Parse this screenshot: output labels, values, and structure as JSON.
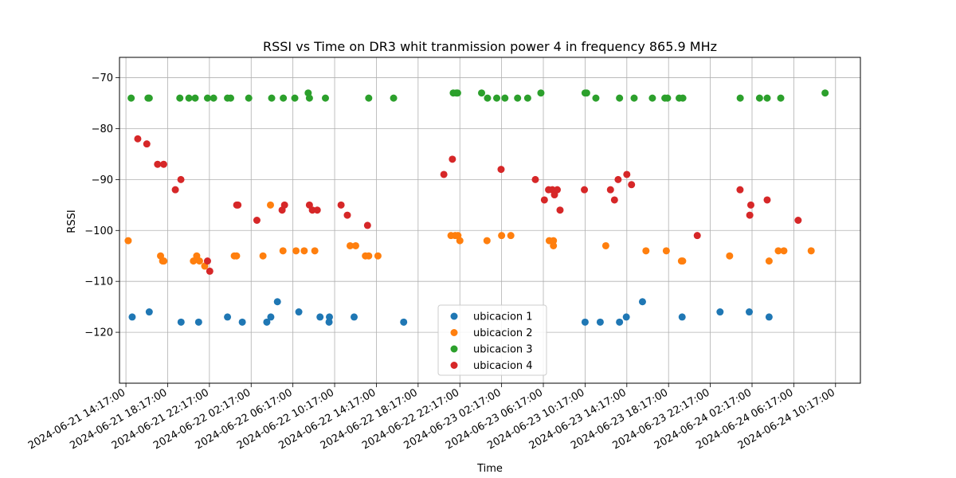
{
  "chart_data": {
    "type": "scatter",
    "title": "RSSI vs Time on DR3  whit tranmission power 4 in frequency 865.9 MHz",
    "xlabel": "Time",
    "ylabel": "RSSI",
    "x_unit": "datetime",
    "xlim": [
      "2024-06-21 13:40",
      "2024-06-24 12:40"
    ],
    "ylim": [
      -130,
      -66
    ],
    "x_ticks": [
      "2024-06-21 14:17:00",
      "2024-06-21 18:17:00",
      "2024-06-21 22:17:00",
      "2024-06-22 02:17:00",
      "2024-06-22 06:17:00",
      "2024-06-22 10:17:00",
      "2024-06-22 14:17:00",
      "2024-06-22 18:17:00",
      "2024-06-22 22:17:00",
      "2024-06-23 02:17:00",
      "2024-06-23 06:17:00",
      "2024-06-23 10:17:00",
      "2024-06-23 14:17:00",
      "2024-06-23 18:17:00",
      "2024-06-23 22:17:00",
      "2024-06-24 02:17:00",
      "2024-06-24 06:17:00",
      "2024-06-24 10:17:00"
    ],
    "y_ticks": [
      -70,
      -80,
      -90,
      -100,
      -110,
      -120
    ],
    "grid": true,
    "legend_position": "lower-center",
    "series": [
      {
        "name": "ubicacion 1",
        "color": "#1f77b4",
        "points": [
          [
            "2024-06-21 14:53",
            -117
          ],
          [
            "2024-06-21 16:31",
            -116
          ],
          [
            "2024-06-21 19:34",
            -118
          ],
          [
            "2024-06-21 21:15",
            -118
          ],
          [
            "2024-06-22 00:01",
            -117
          ],
          [
            "2024-06-22 01:26",
            -118
          ],
          [
            "2024-06-22 03:47",
            -118
          ],
          [
            "2024-06-22 04:10",
            -117
          ],
          [
            "2024-06-22 04:48",
            -114
          ],
          [
            "2024-06-22 06:51",
            -116
          ],
          [
            "2024-06-22 08:53",
            -117
          ],
          [
            "2024-06-22 09:45",
            -118
          ],
          [
            "2024-06-22 09:47",
            -117
          ],
          [
            "2024-06-22 12:09",
            -117
          ],
          [
            "2024-06-22 16:54",
            -118
          ],
          [
            "2024-06-23 10:17",
            -118
          ],
          [
            "2024-06-23 11:44",
            -118
          ],
          [
            "2024-06-23 13:35",
            -118
          ],
          [
            "2024-06-23 14:14",
            -117
          ],
          [
            "2024-06-23 15:47",
            -114
          ],
          [
            "2024-06-23 19:35",
            -117
          ],
          [
            "2024-06-23 23:13",
            -116
          ],
          [
            "2024-06-24 02:01",
            -116
          ],
          [
            "2024-06-24 03:55",
            -117
          ]
        ]
      },
      {
        "name": "ubicacion 2",
        "color": "#ff7f0e",
        "points": [
          [
            "2024-06-21 14:30",
            -102
          ],
          [
            "2024-06-21 17:36",
            -105
          ],
          [
            "2024-06-21 17:48",
            -106
          ],
          [
            "2024-06-21 17:55",
            -106
          ],
          [
            "2024-06-21 20:45",
            -106
          ],
          [
            "2024-06-21 21:04",
            -105
          ],
          [
            "2024-06-21 21:20",
            -106
          ],
          [
            "2024-06-21 21:50",
            -107
          ],
          [
            "2024-06-22 00:40",
            -105
          ],
          [
            "2024-06-22 00:53",
            -105
          ],
          [
            "2024-06-22 03:25",
            -105
          ],
          [
            "2024-06-22 04:08",
            -95
          ],
          [
            "2024-06-22 05:20",
            -104
          ],
          [
            "2024-06-22 06:35",
            -104
          ],
          [
            "2024-06-22 07:22",
            -104
          ],
          [
            "2024-06-22 08:23",
            -104
          ],
          [
            "2024-06-22 11:46",
            -103
          ],
          [
            "2024-06-22 12:18",
            -103
          ],
          [
            "2024-06-22 13:14",
            -105
          ],
          [
            "2024-06-22 13:33",
            -105
          ],
          [
            "2024-06-22 14:26",
            -105
          ],
          [
            "2024-06-22 21:26",
            -101
          ],
          [
            "2024-06-22 21:50",
            -101
          ],
          [
            "2024-06-22 22:06",
            -101
          ],
          [
            "2024-06-22 22:17",
            -102
          ],
          [
            "2024-06-23 00:53",
            -102
          ],
          [
            "2024-06-23 02:17",
            -101
          ],
          [
            "2024-06-23 03:10",
            -101
          ],
          [
            "2024-06-23 06:51",
            -102
          ],
          [
            "2024-06-23 07:15",
            -103
          ],
          [
            "2024-06-23 07:15",
            -102
          ],
          [
            "2024-06-23 12:16",
            -103
          ],
          [
            "2024-06-23 16:07",
            -104
          ],
          [
            "2024-06-23 18:04",
            -104
          ],
          [
            "2024-06-23 19:31",
            -106
          ],
          [
            "2024-06-23 19:38",
            -106
          ],
          [
            "2024-06-24 00:08",
            -105
          ],
          [
            "2024-06-24 03:55",
            -106
          ],
          [
            "2024-06-24 04:48",
            -104
          ],
          [
            "2024-06-24 05:20",
            -104
          ],
          [
            "2024-06-24 07:57",
            -104
          ]
        ]
      },
      {
        "name": "ubicacion 3",
        "color": "#2ca02c",
        "points": [
          [
            "2024-06-21 14:47",
            -74
          ],
          [
            "2024-06-21 16:24",
            -74
          ],
          [
            "2024-06-21 16:31",
            -74
          ],
          [
            "2024-06-21 19:27",
            -74
          ],
          [
            "2024-06-21 20:19",
            -74
          ],
          [
            "2024-06-21 20:55",
            -74
          ],
          [
            "2024-06-21 22:06",
            -74
          ],
          [
            "2024-06-21 22:41",
            -74
          ],
          [
            "2024-06-22 00:01",
            -74
          ],
          [
            "2024-06-22 00:19",
            -74
          ],
          [
            "2024-06-22 02:03",
            -74
          ],
          [
            "2024-06-22 04:15",
            -74
          ],
          [
            "2024-06-22 05:22",
            -74
          ],
          [
            "2024-06-22 06:28",
            -74
          ],
          [
            "2024-06-22 07:45",
            -73
          ],
          [
            "2024-06-22 07:52",
            -74
          ],
          [
            "2024-06-22 09:24",
            -74
          ],
          [
            "2024-06-22 13:33",
            -74
          ],
          [
            "2024-06-22 15:56",
            -74
          ],
          [
            "2024-06-22 21:39",
            -73
          ],
          [
            "2024-06-22 21:57",
            -73
          ],
          [
            "2024-06-22 22:04",
            -73
          ],
          [
            "2024-06-23 00:22",
            -73
          ],
          [
            "2024-06-23 00:56",
            -74
          ],
          [
            "2024-06-23 01:49",
            -74
          ],
          [
            "2024-06-23 02:36",
            -74
          ],
          [
            "2024-06-23 03:49",
            -74
          ],
          [
            "2024-06-23 04:47",
            -74
          ],
          [
            "2024-06-23 06:03",
            -73
          ],
          [
            "2024-06-23 10:17",
            -73
          ],
          [
            "2024-06-23 10:26",
            -73
          ],
          [
            "2024-06-23 11:19",
            -74
          ],
          [
            "2024-06-23 13:35",
            -74
          ],
          [
            "2024-06-23 14:59",
            -74
          ],
          [
            "2024-06-23 16:44",
            -74
          ],
          [
            "2024-06-23 17:56",
            -74
          ],
          [
            "2024-06-23 18:11",
            -74
          ],
          [
            "2024-06-23 19:18",
            -74
          ],
          [
            "2024-06-23 19:39",
            -74
          ],
          [
            "2024-06-24 01:09",
            -74
          ],
          [
            "2024-06-24 03:00",
            -74
          ],
          [
            "2024-06-24 03:44",
            -74
          ],
          [
            "2024-06-24 05:02",
            -74
          ],
          [
            "2024-06-24 09:17",
            -73
          ]
        ]
      },
      {
        "name": "ubicacion 4",
        "color": "#d62728",
        "points": [
          [
            "2024-06-21 15:25",
            -82
          ],
          [
            "2024-06-21 16:17",
            -83
          ],
          [
            "2024-06-21 17:19",
            -87
          ],
          [
            "2024-06-21 17:54",
            -87
          ],
          [
            "2024-06-21 19:01",
            -92
          ],
          [
            "2024-06-21 19:33",
            -90
          ],
          [
            "2024-06-21 22:06",
            -106
          ],
          [
            "2024-06-21 22:19",
            -108
          ],
          [
            "2024-06-22 00:54",
            -95
          ],
          [
            "2024-06-22 01:01",
            -95
          ],
          [
            "2024-06-22 02:50",
            -98
          ],
          [
            "2024-06-22 05:15",
            -96
          ],
          [
            "2024-06-22 05:29",
            -95
          ],
          [
            "2024-06-22 07:52",
            -95
          ],
          [
            "2024-06-22 08:09",
            -96
          ],
          [
            "2024-06-22 08:37",
            -96
          ],
          [
            "2024-06-22 10:54",
            -95
          ],
          [
            "2024-06-22 11:30",
            -97
          ],
          [
            "2024-06-22 13:26",
            -99
          ],
          [
            "2024-06-22 20:45",
            -89
          ],
          [
            "2024-06-22 21:34",
            -86
          ],
          [
            "2024-06-23 02:14",
            -88
          ],
          [
            "2024-06-23 05:31",
            -90
          ],
          [
            "2024-06-23 06:23",
            -94
          ],
          [
            "2024-06-23 06:47",
            -92
          ],
          [
            "2024-06-23 07:09",
            -92
          ],
          [
            "2024-06-23 07:21",
            -93
          ],
          [
            "2024-06-23 07:37",
            -92
          ],
          [
            "2024-06-23 07:53",
            -96
          ],
          [
            "2024-06-23 10:13",
            -92
          ],
          [
            "2024-06-23 12:43",
            -92
          ],
          [
            "2024-06-23 13:06",
            -94
          ],
          [
            "2024-06-23 13:27",
            -90
          ],
          [
            "2024-06-23 14:17",
            -89
          ],
          [
            "2024-06-23 14:44",
            -91
          ],
          [
            "2024-06-23 21:02",
            -101
          ],
          [
            "2024-06-24 01:08",
            -92
          ],
          [
            "2024-06-24 02:10",
            -95
          ],
          [
            "2024-06-24 02:04",
            -97
          ],
          [
            "2024-06-24 03:44",
            -94
          ],
          [
            "2024-06-24 06:42",
            -98
          ]
        ]
      }
    ]
  }
}
